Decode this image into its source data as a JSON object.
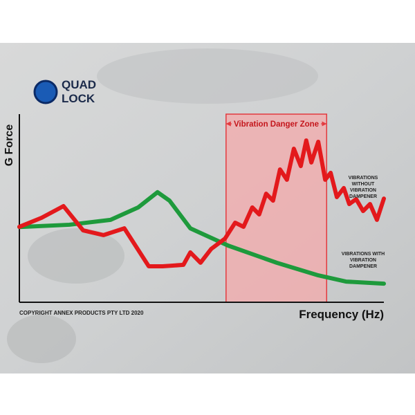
{
  "logo": {
    "line1": "QUAD",
    "line2": "LOCK"
  },
  "chart_data": {
    "type": "line",
    "y_label": "G Force",
    "x_label": "Frequency (Hz)",
    "copyright": "COPYRIGHT ANNEX PRODUCTS PTY LTD 2020",
    "xlim": [
      0,
      100
    ],
    "ylim": [
      0,
      100
    ],
    "zone": {
      "label": "Vibration Danger Zone",
      "x": [
        56.7,
        84.3
      ],
      "color": "#f4a9ab",
      "border": "#e23a3f"
    },
    "series": [
      {
        "name": "VIBRATIONS WITHOUT VIBRATION DAMPENER",
        "color": "#e3191c",
        "x": [
          0,
          6.1,
          12.1,
          17.5,
          23.1,
          28.8,
          35.5,
          39.3,
          45.0,
          46.9,
          49.7,
          52.6,
          56.4,
          59.2,
          61.5,
          63.9,
          65.8,
          67.7,
          69.6,
          71.5,
          73.4,
          75.3,
          77.2,
          78.7,
          80.1,
          82.0,
          83.9,
          85.4,
          87.1,
          89.0,
          90.5,
          92.4,
          94.3,
          96.2,
          98.1,
          100
        ],
        "values": [
          40.1,
          44.9,
          51.1,
          38.2,
          35.7,
          39.3,
          19.1,
          19.1,
          19.9,
          26.5,
          21.0,
          28.3,
          33.8,
          42.3,
          40.1,
          50.4,
          46.7,
          57.7,
          54.0,
          70.6,
          65.1,
          81.6,
          72.4,
          86.0,
          74.3,
          85.3,
          65.1,
          68.8,
          55.9,
          60.7,
          52.2,
          54.8,
          48.5,
          52.2,
          43.8,
          55.1
        ]
      },
      {
        "name": "VIBRATIONS WITH VIBRATION DAMPENER",
        "color": "#1e9a3c",
        "x": [
          0,
          13.7,
          25.0,
          32.6,
          37.9,
          41.2,
          46.9,
          57.3,
          70.6,
          82.0,
          89.6,
          100
        ],
        "values": [
          40,
          41.2,
          43.8,
          50.4,
          58.5,
          54.0,
          39.3,
          30.1,
          21.0,
          14.3,
          11.0,
          9.9
        ]
      }
    ]
  }
}
